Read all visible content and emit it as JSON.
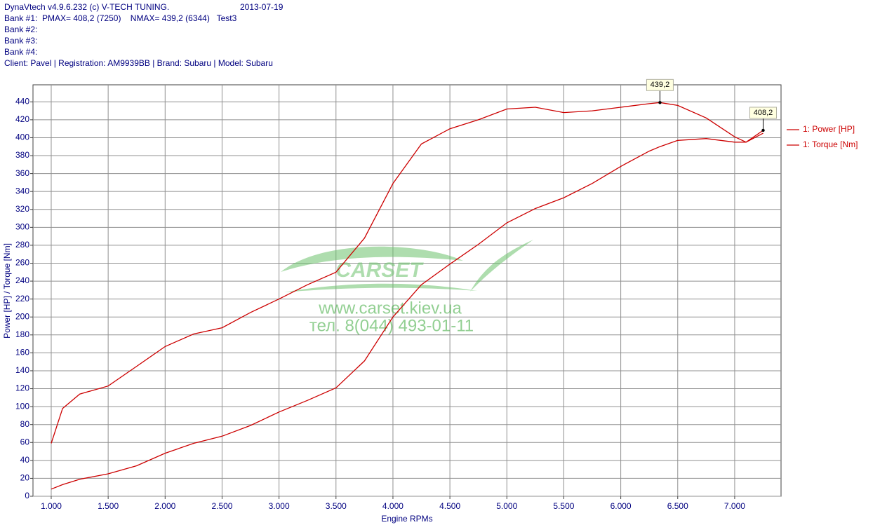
{
  "header": {
    "program": "DynaVtech v4.9.6.232 (c) V-TECH TUNING.",
    "date": "2013-07-19",
    "banks": [
      "Bank #1:  PMAX= 408,2 (7250)    NMAX= 439,2 (6344)   Test3",
      "Bank #2:",
      "Bank #3:",
      "Bank #4:"
    ],
    "client": "Client: Pavel | Registration: AM9939BB | Brand: Subaru | Model: Subaru"
  },
  "watermark": {
    "brand": "CARSET",
    "url": "www.carset.kiev.ua",
    "phone": "тел. 8(044) 493-01-11"
  },
  "chart_data": {
    "type": "line",
    "x_label": "Engine RPMs",
    "y_label": "Power [HP] / Torque [Nm]",
    "x": [
      1000,
      1100,
      1250,
      1500,
      1750,
      2000,
      2250,
      2500,
      2750,
      3000,
      3250,
      3500,
      3750,
      4000,
      4250,
      4500,
      4750,
      5000,
      5250,
      5500,
      5750,
      6000,
      6250,
      6344,
      6500,
      6750,
      7000,
      7100,
      7250
    ],
    "series": [
      {
        "name": "1: Power [HP]",
        "color": "#cc0000",
        "values": [
          8,
          13,
          19,
          25,
          34,
          48,
          59,
          67,
          79,
          94,
          107,
          121,
          151,
          200,
          236,
          259,
          281,
          305,
          321,
          333,
          349,
          368,
          385,
          390,
          397,
          399,
          395,
          395,
          408.2
        ]
      },
      {
        "name": "1: Torque [Nm]",
        "color": "#cc0000",
        "values": [
          59,
          98,
          114,
          123,
          145,
          167,
          181,
          188,
          205,
          220,
          236,
          250,
          288,
          349,
          393,
          410,
          420,
          432,
          434,
          428,
          430,
          434,
          438,
          439.2,
          436,
          422,
          401,
          395,
          405
        ]
      }
    ],
    "annotations": [
      {
        "text": "439,2",
        "x": 6344,
        "y": 439.2
      },
      {
        "text": "408,2",
        "x": 7250,
        "y": 408.2
      }
    ],
    "xlim": [
      840,
      7407
    ],
    "ylim": [
      0,
      459
    ],
    "xticks": [
      {
        "value": 1000,
        "label": "1.000"
      },
      {
        "value": 1500,
        "label": "1.500"
      },
      {
        "value": 2000,
        "label": "2.000"
      },
      {
        "value": 2500,
        "label": "2.500"
      },
      {
        "value": 3000,
        "label": "3.000"
      },
      {
        "value": 3500,
        "label": "3.500"
      },
      {
        "value": 4000,
        "label": "4.000"
      },
      {
        "value": 4500,
        "label": "4.500"
      },
      {
        "value": 5000,
        "label": "5.000"
      },
      {
        "value": 5500,
        "label": "5.500"
      },
      {
        "value": 6000,
        "label": "6.000"
      },
      {
        "value": 6500,
        "label": "6.500"
      },
      {
        "value": 7000,
        "label": "7.000"
      }
    ],
    "yticks": [
      0,
      20,
      40,
      60,
      80,
      100,
      120,
      140,
      160,
      180,
      200,
      220,
      240,
      260,
      280,
      300,
      320,
      340,
      360,
      380,
      400,
      420,
      440
    ],
    "grid": true
  }
}
